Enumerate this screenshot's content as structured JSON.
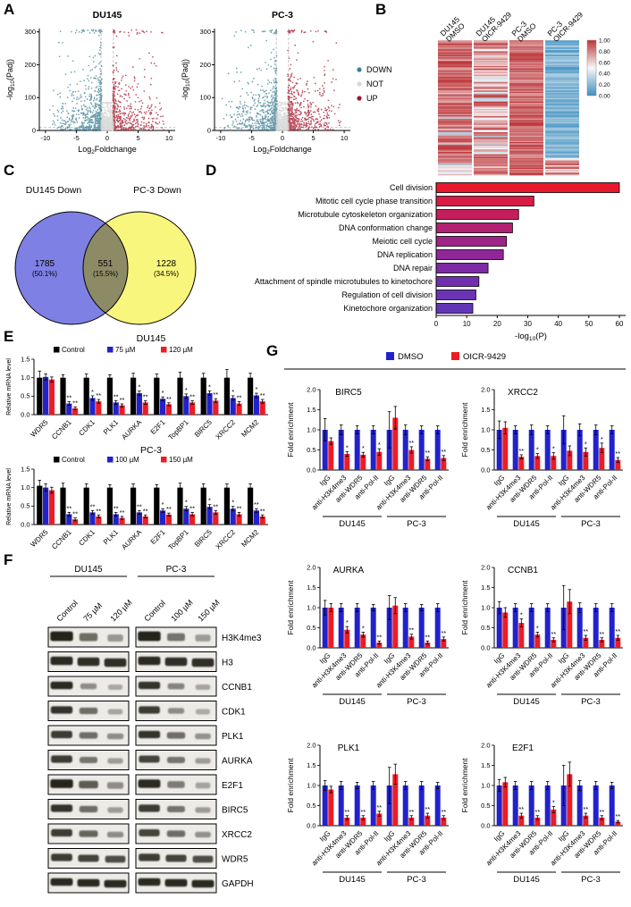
{
  "panels": {
    "A": "A",
    "B": "B",
    "C": "C",
    "D": "D",
    "E": "E",
    "F": "F",
    "G": "G"
  },
  "volcano": {
    "ylabel_parts": [
      "-log",
      "10",
      "(Padj)"
    ],
    "xlabel_parts": [
      "Log",
      "2",
      "Foldchange"
    ],
    "xticks": [
      -10,
      -5,
      0,
      5,
      10
    ],
    "yticks": [
      0,
      100,
      200,
      300
    ],
    "legend": [
      {
        "label": "DOWN",
        "color": "#3d7f93"
      },
      {
        "label": "NOT",
        "color": "#d8d8d8"
      },
      {
        "label": "UP",
        "color": "#a41428"
      }
    ],
    "plots": [
      {
        "title": "DU145",
        "seed": 11,
        "n_down": 750,
        "n_up": 520,
        "n_not": 520
      },
      {
        "title": "PC-3",
        "seed": 29,
        "n_down": 680,
        "n_up": 600,
        "n_not": 520
      }
    ]
  },
  "heatmap": {
    "columns": [
      [
        "DU145",
        "DMSO"
      ],
      [
        "DU145",
        "OICR-9429"
      ],
      [
        "PC-3",
        "DMSO"
      ],
      [
        "PC-3",
        "OICR-9429"
      ]
    ],
    "rows": 110,
    "seed": 7,
    "colorbar_ticks": [
      "1.00",
      "0.80",
      "0.60",
      "0.40",
      "0.20",
      "0.00"
    ],
    "color_high": "#bd3539",
    "color_mid": "#f7f7f7",
    "color_low": "#3e8fc0"
  },
  "venn": {
    "left_label": "DU145 Down",
    "right_label": "PC-3 Down",
    "left_value": "1785",
    "left_pct": "(50.1%)",
    "overlap_value": "551",
    "overlap_pct": "(15.5%)",
    "right_value": "1228",
    "right_pct": "(34.5%)",
    "left_color": "#7e80e3",
    "right_color": "#f8f67d",
    "overlap_color": "#8c8b66"
  },
  "go_chart": {
    "type": "bar",
    "orientation": "horizontal",
    "categories": [
      "Cell division",
      "Mitotic cell cycle phase transition",
      "Microtubule cytoskeleton organization",
      "DNA conformation change",
      "Meiotic cell cycle",
      "DNA replication",
      "DNA repair",
      "Attachment of spindle microtubules to kinetochore",
      "Regulation of cell division",
      "Kinetochore organization"
    ],
    "values": [
      60,
      32,
      27,
      25,
      23,
      22,
      17,
      14,
      13,
      12
    ],
    "xticks": [
      0,
      10,
      20,
      30,
      40,
      50,
      60
    ],
    "xlim": [
      0,
      60
    ],
    "xlabel_parts": [
      "-log",
      "10",
      "(P)"
    ],
    "colors": [
      "#e8192c",
      "#d81b44",
      "#c41e5c",
      "#b32273",
      "#a02488",
      "#8f2798",
      "#7f2aa6",
      "#7230ae",
      "#6a34b4",
      "#6336b8"
    ]
  },
  "mrna": {
    "ylabel": "Relative mRNA level",
    "yticks": [
      "0.0",
      "0.5",
      "1.0",
      "1.5"
    ],
    "ymax": 1.5,
    "genes": [
      "WDR5",
      "CCNB1",
      "CDK1",
      "PLK1",
      "AURKA",
      "E2F1",
      "TopBP1",
      "BIRC5",
      "XRCC2",
      "MCM2"
    ],
    "charts": [
      {
        "title": "DU145",
        "series": [
          {
            "name": "Control",
            "color": "#000000",
            "values": [
              1.0,
              1.0,
              1.0,
              1.0,
              1.0,
              1.0,
              1.0,
              1.0,
              1.0,
              1.0
            ],
            "err": [
              0.18,
              0.08,
              0.1,
              0.08,
              0.12,
              0.1,
              0.15,
              0.12,
              0.22,
              0.12
            ],
            "sig": [
              "",
              "",
              "",
              "",
              "",
              "",
              "",
              "",
              "",
              ""
            ]
          },
          {
            "name": "75 µM",
            "color": "#2222cc",
            "values": [
              1.02,
              0.3,
              0.45,
              0.33,
              0.58,
              0.43,
              0.5,
              0.58,
              0.45,
              0.52
            ],
            "err": [
              0.08,
              0.05,
              0.06,
              0.05,
              0.06,
              0.05,
              0.06,
              0.06,
              0.06,
              0.06
            ],
            "sig": [
              "",
              "**",
              "*",
              "**",
              "*",
              "*",
              "*",
              "*",
              "*",
              "*"
            ]
          },
          {
            "name": "120 µM",
            "color": "#ec1c24",
            "values": [
              0.95,
              0.17,
              0.36,
              0.25,
              0.33,
              0.28,
              0.33,
              0.38,
              0.3,
              0.36
            ],
            "err": [
              0.07,
              0.04,
              0.05,
              0.04,
              0.05,
              0.04,
              0.05,
              0.05,
              0.05,
              0.05
            ],
            "sig": [
              "",
              "**",
              "**",
              "**",
              "**",
              "**",
              "**",
              "**",
              "**",
              "**"
            ]
          }
        ]
      },
      {
        "title": "PC-3",
        "series": [
          {
            "name": "Control",
            "color": "#000000",
            "values": [
              1.05,
              1.0,
              1.0,
              1.0,
              1.0,
              1.0,
              1.0,
              1.0,
              1.0,
              1.0
            ],
            "err": [
              0.15,
              0.12,
              0.1,
              0.08,
              0.1,
              0.08,
              0.12,
              0.1,
              0.1,
              0.1
            ],
            "sig": [
              "",
              "",
              "",
              "",
              "",
              "",
              "",
              "",
              "",
              ""
            ]
          },
          {
            "name": "100 µM",
            "color": "#2222cc",
            "values": [
              1.0,
              0.28,
              0.33,
              0.28,
              0.33,
              0.38,
              0.43,
              0.48,
              0.43,
              0.38
            ],
            "err": [
              0.1,
              0.05,
              0.05,
              0.05,
              0.05,
              0.05,
              0.06,
              0.06,
              0.06,
              0.05
            ],
            "sig": [
              "",
              "**",
              "**",
              "**",
              "**",
              "*",
              "*",
              "*",
              "*",
              "**"
            ]
          },
          {
            "name": "150 µM",
            "color": "#ec1c24",
            "values": [
              0.93,
              0.14,
              0.22,
              0.18,
              0.22,
              0.27,
              0.28,
              0.33,
              0.28,
              0.22
            ],
            "err": [
              0.08,
              0.04,
              0.04,
              0.04,
              0.04,
              0.04,
              0.05,
              0.05,
              0.05,
              0.04
            ],
            "sig": [
              "",
              "**",
              "**",
              "**",
              "**",
              "**",
              "**",
              "**",
              "**",
              "**"
            ]
          }
        ]
      }
    ]
  },
  "blots": {
    "groups": [
      {
        "name": "DU145",
        "lanes": [
          "Control",
          "75 µM",
          "120 µM"
        ]
      },
      {
        "name": "PC-3",
        "lanes": [
          "Control",
          "100 µM",
          "150 µM"
        ]
      }
    ],
    "rows": [
      {
        "label": "H3K4me3",
        "bands": [
          [
            0.95,
            0.5,
            0.22
          ],
          [
            0.95,
            0.45,
            0.2
          ]
        ],
        "h": 10
      },
      {
        "label": "H3",
        "bands": [
          [
            0.9,
            0.88,
            0.88
          ],
          [
            0.9,
            0.88,
            0.88
          ]
        ],
        "h": 9
      },
      {
        "label": "CCNB1",
        "bands": [
          [
            0.9,
            0.3,
            0.12
          ],
          [
            0.85,
            0.35,
            0.15
          ]
        ],
        "h": 8
      },
      {
        "label": "CDK1",
        "bands": [
          [
            0.85,
            0.5,
            0.15
          ],
          [
            0.8,
            0.3,
            0.1
          ]
        ],
        "h": 8
      },
      {
        "label": "PLK1",
        "bands": [
          [
            0.8,
            0.5,
            0.3
          ],
          [
            0.85,
            0.5,
            0.25
          ]
        ],
        "h": 8
      },
      {
        "label": "AURKA",
        "bands": [
          [
            0.8,
            0.45,
            0.2
          ],
          [
            0.75,
            0.45,
            0.2
          ]
        ],
        "h": 8
      },
      {
        "label": "E2F1",
        "bands": [
          [
            0.95,
            0.6,
            0.3
          ],
          [
            0.9,
            0.4,
            0.15
          ]
        ],
        "h": 9
      },
      {
        "label": "BIRC5",
        "bands": [
          [
            0.85,
            0.5,
            0.2
          ],
          [
            0.8,
            0.45,
            0.2
          ]
        ],
        "h": 8
      },
      {
        "label": "XRCC2",
        "bands": [
          [
            0.8,
            0.55,
            0.3
          ],
          [
            0.75,
            0.5,
            0.25
          ]
        ],
        "h": 8
      },
      {
        "label": "WDR5",
        "bands": [
          [
            0.8,
            0.75,
            0.7
          ],
          [
            0.8,
            0.75,
            0.7
          ]
        ],
        "h": 8
      },
      {
        "label": "GAPDH",
        "bands": [
          [
            0.9,
            0.9,
            0.9
          ],
          [
            0.9,
            0.9,
            0.9
          ]
        ],
        "h": 8
      }
    ]
  },
  "chip": {
    "legend": [
      {
        "label": "DMSO",
        "color": "#2222cc"
      },
      {
        "label": "OICR-9429",
        "color": "#ec1c24"
      }
    ],
    "ylabel": "Fold enrichment",
    "yticks": [
      "0.0",
      "0.5",
      "1.0",
      "1.5",
      "2.0"
    ],
    "ymax": 2.0,
    "conditions": [
      "IgG",
      "anti-H3K4me3",
      "anti-WDR5",
      "anti-Pol-II"
    ],
    "cell_lines": [
      "DU145",
      "PC-3"
    ],
    "charts": [
      {
        "title": "BIRC5",
        "dmso": [
          1,
          1,
          1,
          1,
          1,
          1,
          1,
          1
        ],
        "dmso_err": [
          0.28,
          0.12,
          0.1,
          0.1,
          0.45,
          0.12,
          0.1,
          0.1
        ],
        "oicr": [
          0.72,
          0.4,
          0.38,
          0.45,
          1.3,
          0.5,
          0.28,
          0.3
        ],
        "oicr_err": [
          0.08,
          0.06,
          0.06,
          0.08,
          0.28,
          0.08,
          0.05,
          0.06
        ],
        "sig": [
          "",
          "*",
          "*",
          "*",
          "",
          "**",
          "**",
          "**"
        ]
      },
      {
        "title": "XRCC2",
        "dmso": [
          1,
          1,
          1,
          1,
          1,
          1,
          1,
          1
        ],
        "dmso_err": [
          0.22,
          0.1,
          0.12,
          0.1,
          0.35,
          0.15,
          0.12,
          0.1
        ],
        "oicr": [
          1.05,
          0.33,
          0.35,
          0.35,
          0.48,
          0.45,
          0.55,
          0.25
        ],
        "oicr_err": [
          0.15,
          0.05,
          0.06,
          0.08,
          0.12,
          0.1,
          0.12,
          0.06
        ],
        "sig": [
          "",
          "**",
          "*",
          "*",
          "",
          "*",
          "*",
          "**"
        ]
      },
      {
        "title": "AURKA",
        "dmso": [
          1,
          1,
          1,
          1,
          1,
          1,
          1,
          1
        ],
        "dmso_err": [
          0.18,
          0.1,
          0.1,
          0.08,
          0.3,
          0.1,
          0.08,
          0.1
        ],
        "oicr": [
          1.0,
          0.45,
          0.33,
          0.13,
          1.05,
          0.28,
          0.13,
          0.22
        ],
        "oicr_err": [
          0.1,
          0.08,
          0.06,
          0.04,
          0.2,
          0.06,
          0.04,
          0.05
        ],
        "sig": [
          "",
          "*",
          "*",
          "**",
          "",
          "**",
          "**",
          "**"
        ]
      },
      {
        "title": "CCNB1",
        "dmso": [
          1,
          1,
          1,
          1,
          1,
          1,
          1,
          1
        ],
        "dmso_err": [
          0.15,
          0.1,
          0.1,
          0.1,
          0.55,
          0.12,
          0.1,
          0.1
        ],
        "oicr": [
          0.88,
          0.62,
          0.33,
          0.2,
          1.15,
          0.25,
          0.2,
          0.25
        ],
        "oicr_err": [
          0.12,
          0.1,
          0.06,
          0.05,
          0.3,
          0.06,
          0.05,
          0.06
        ],
        "sig": [
          "",
          "*",
          "*",
          "**",
          "",
          "**",
          "**",
          "**"
        ]
      },
      {
        "title": "PLK1",
        "dmso": [
          1,
          1,
          1,
          1,
          1,
          1,
          1,
          1
        ],
        "dmso_err": [
          0.12,
          0.1,
          0.08,
          0.1,
          0.45,
          0.1,
          0.1,
          0.08
        ],
        "oicr": [
          0.9,
          0.2,
          0.2,
          0.3,
          1.28,
          0.2,
          0.25,
          0.2
        ],
        "oicr_err": [
          0.08,
          0.05,
          0.05,
          0.06,
          0.25,
          0.05,
          0.06,
          0.05
        ],
        "sig": [
          "",
          "**",
          "**",
          "**",
          "",
          "**",
          "**",
          "**"
        ]
      },
      {
        "title": "E2F1",
        "dmso": [
          1,
          1,
          1,
          1,
          1,
          1,
          1,
          1
        ],
        "dmso_err": [
          0.15,
          0.1,
          0.1,
          0.1,
          0.5,
          0.12,
          0.1,
          0.08
        ],
        "oicr": [
          1.08,
          0.25,
          0.2,
          0.4,
          1.28,
          0.25,
          0.2,
          0.1
        ],
        "oicr_err": [
          0.12,
          0.06,
          0.05,
          0.08,
          0.3,
          0.06,
          0.05,
          0.03
        ],
        "sig": [
          "",
          "**",
          "**",
          "*",
          "",
          "**",
          "**",
          "**"
        ]
      }
    ]
  }
}
